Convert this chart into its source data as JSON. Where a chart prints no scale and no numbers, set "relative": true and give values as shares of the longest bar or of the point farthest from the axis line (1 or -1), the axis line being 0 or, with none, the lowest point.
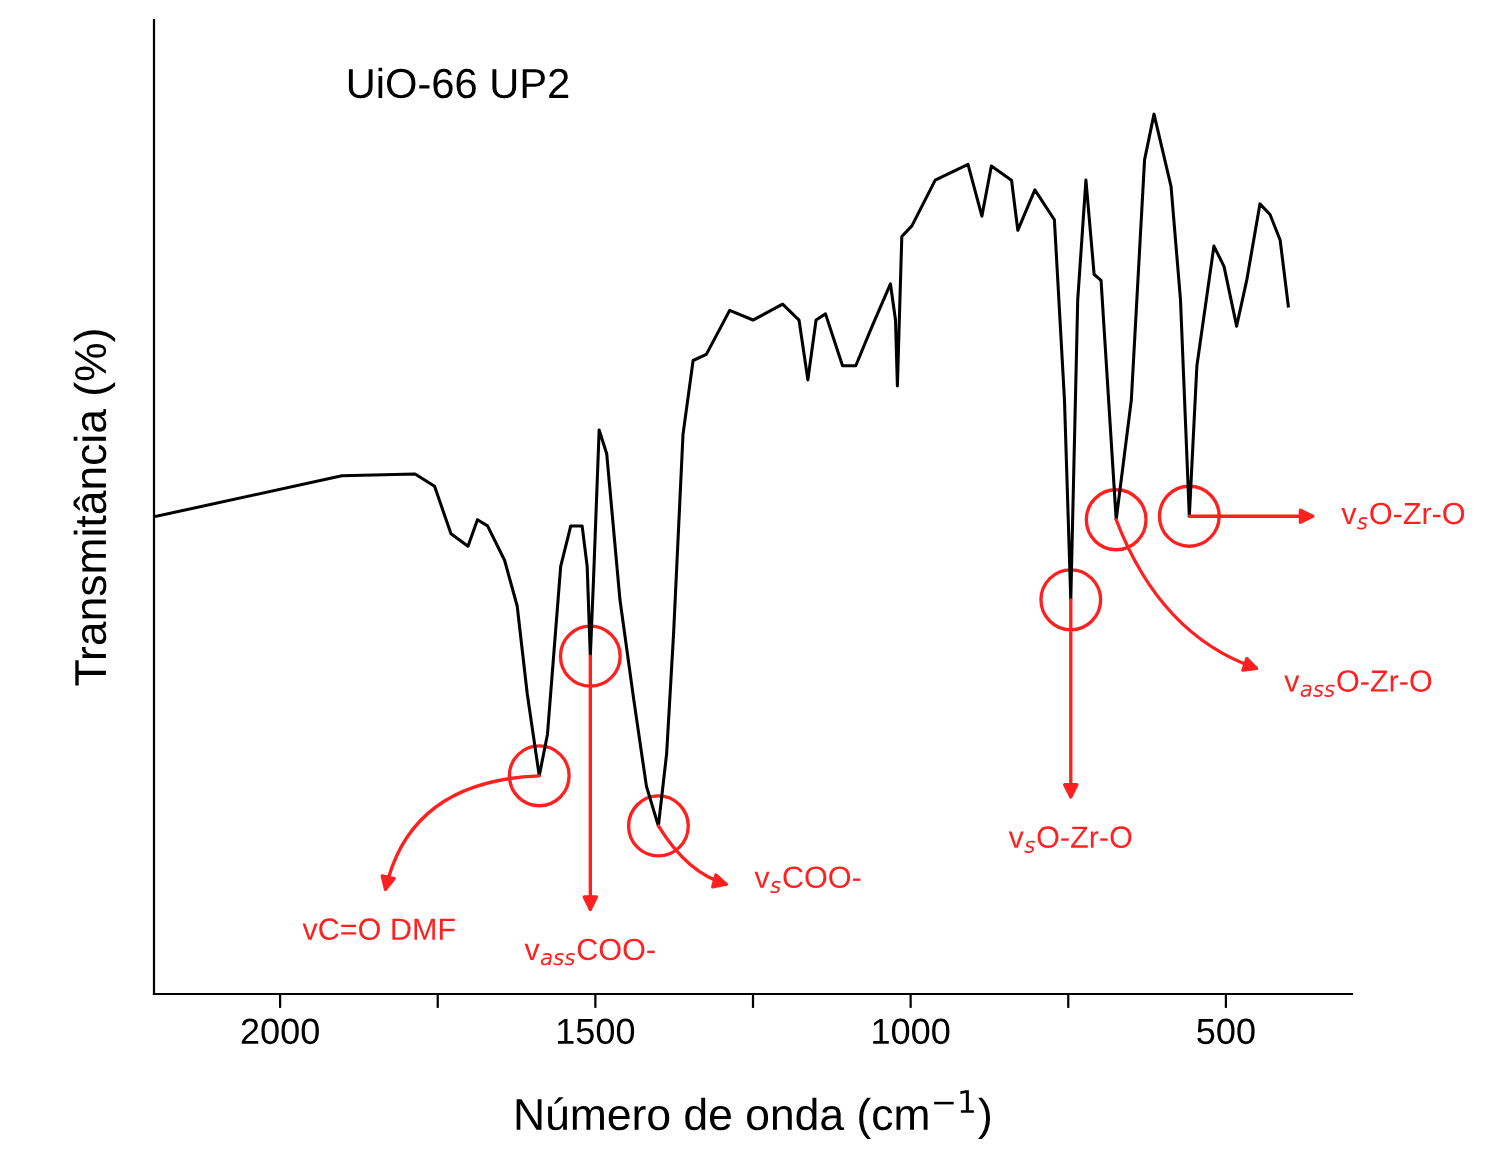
{
  "chart_data": {
    "type": "line",
    "title": "UiO-66 UP2",
    "xlabel": "Número de onda (cm$^{−1}$)",
    "ylabel": "Transmitância (%)",
    "relative": true,
    "tick_labels": "x",
    "grid": false,
    "legend": false,
    "marker": "none",
    "line_style": "solid",
    "xlim": [
      2200,
      300
    ],
    "xticks": [
      2000,
      {
        "value": 1750,
        "label": null
      },
      1500,
      {
        "value": 1250,
        "label": null
      },
      1000,
      {
        "value": 750,
        "label": null
      },
      500
    ],
    "series": [
      {
        "color": "#000000",
        "x": [
          2196,
          1902,
          1786,
          1755,
          1729,
          1702,
          1687,
          1671,
          1644,
          1624,
          1608,
          1589,
          1576,
          1555,
          1539,
          1521,
          1513,
          1508,
          1503,
          1494,
          1482,
          1461,
          1439,
          1419,
          1400,
          1387,
          1376,
          1361,
          1345,
          1324,
          1287,
          1250,
          1203,
          1177,
          1163,
          1150,
          1135,
          1108,
          1087,
          1061,
          1032,
          1024,
          1021,
          1014,
          998,
          961,
          909,
          887,
          872,
          840,
          830,
          803,
          772,
          756,
          746,
          735,
          722,
          709,
          698,
          674,
          650,
          629,
          614,
          587,
          572,
          558,
          546,
          519,
          503,
          483,
          467,
          446,
          430,
          414,
          401
        ],
        "values": [
          0.543,
          0.589,
          0.591,
          0.577,
          0.523,
          0.509,
          0.539,
          0.532,
          0.493,
          0.441,
          0.341,
          0.248,
          0.295,
          0.486,
          0.532,
          0.532,
          0.486,
          0.384,
          0.47,
          0.641,
          0.614,
          0.448,
          0.334,
          0.236,
          0.191,
          0.273,
          0.409,
          0.636,
          0.72,
          0.727,
          0.777,
          0.766,
          0.784,
          0.766,
          0.698,
          0.766,
          0.773,
          0.714,
          0.714,
          0.759,
          0.807,
          0.766,
          0.691,
          0.861,
          0.873,
          0.925,
          0.943,
          0.884,
          0.941,
          0.925,
          0.868,
          0.914,
          0.88,
          0.675,
          0.448,
          0.789,
          0.925,
          0.818,
          0.811,
          0.539,
          0.675,
          0.948,
          1.0,
          0.918,
          0.789,
          0.543,
          0.714,
          0.85,
          0.827,
          0.759,
          0.811,
          0.898,
          0.886,
          0.857,
          0.782
        ]
      }
    ],
    "annotations": [
      {
        "text": "vC=O DMF",
        "x": 1589,
        "y": 0.248
      },
      {
        "text": "v$_{ass}$COO-",
        "x": 1508,
        "y": 0.384
      },
      {
        "text": "v$_{s}$COO-",
        "x": 1400,
        "y": 0.191
      },
      {
        "text": "v$_{s}$O-Zr-O",
        "x": 746,
        "y": 0.448
      },
      {
        "text": "v$_{ass}$O-Zr-O",
        "x": 674,
        "y": 0.539
      },
      {
        "text": "v$_{s}$O-Zr-O",
        "x": 558,
        "y": 0.543
      }
    ]
  }
}
